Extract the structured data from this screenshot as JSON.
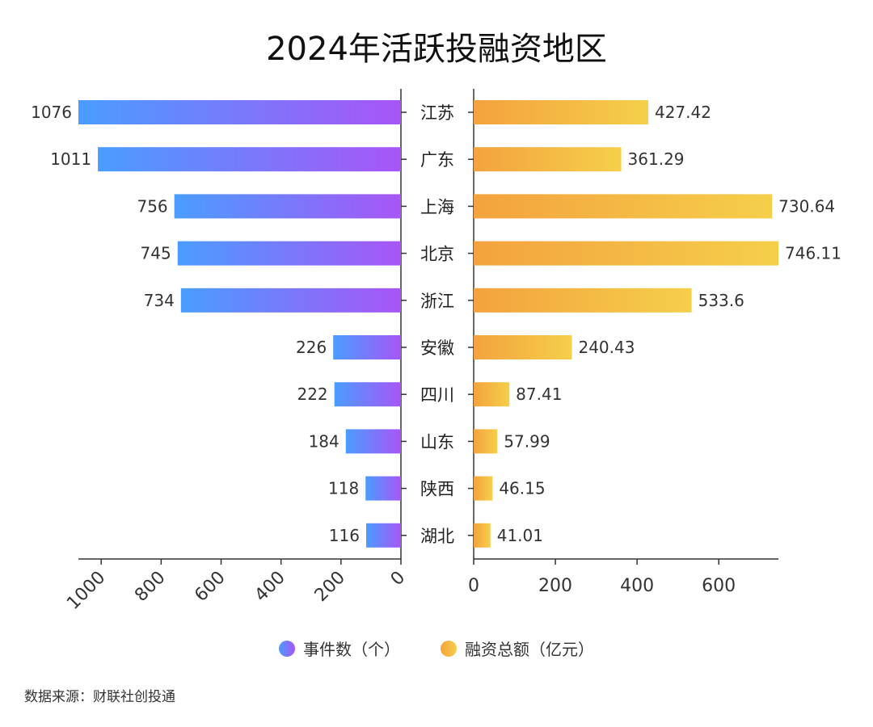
{
  "chart_data": {
    "type": "bar",
    "title": "2024年活跃投融资地区",
    "categories": [
      "江苏",
      "广东",
      "上海",
      "北京",
      "浙江",
      "安徽",
      "四川",
      "山东",
      "陕西",
      "湖北"
    ],
    "series": [
      {
        "name": "事件数（个）",
        "values": [
          1076,
          1011,
          756,
          745,
          734,
          226,
          222,
          184,
          118,
          116
        ],
        "colors": [
          "#4a9dff",
          "#a855f7"
        ],
        "xlim": [
          0,
          1076
        ],
        "ticks": [
          0,
          200,
          400,
          600,
          800,
          1000
        ]
      },
      {
        "name": "融资总额（亿元）",
        "values": [
          "427.42",
          "361.29",
          "730.64",
          "746.11",
          "533.6",
          "240.43",
          "87.41",
          "57.99",
          "46.15",
          "41.01"
        ],
        "colors": [
          "#f4a23e",
          "#f5cf4a"
        ],
        "xlim": [
          0,
          746.11
        ],
        "ticks": [
          0,
          200,
          400,
          600
        ]
      }
    ],
    "legend_position": "bottom",
    "source": "数据来源：财联社创投通"
  }
}
